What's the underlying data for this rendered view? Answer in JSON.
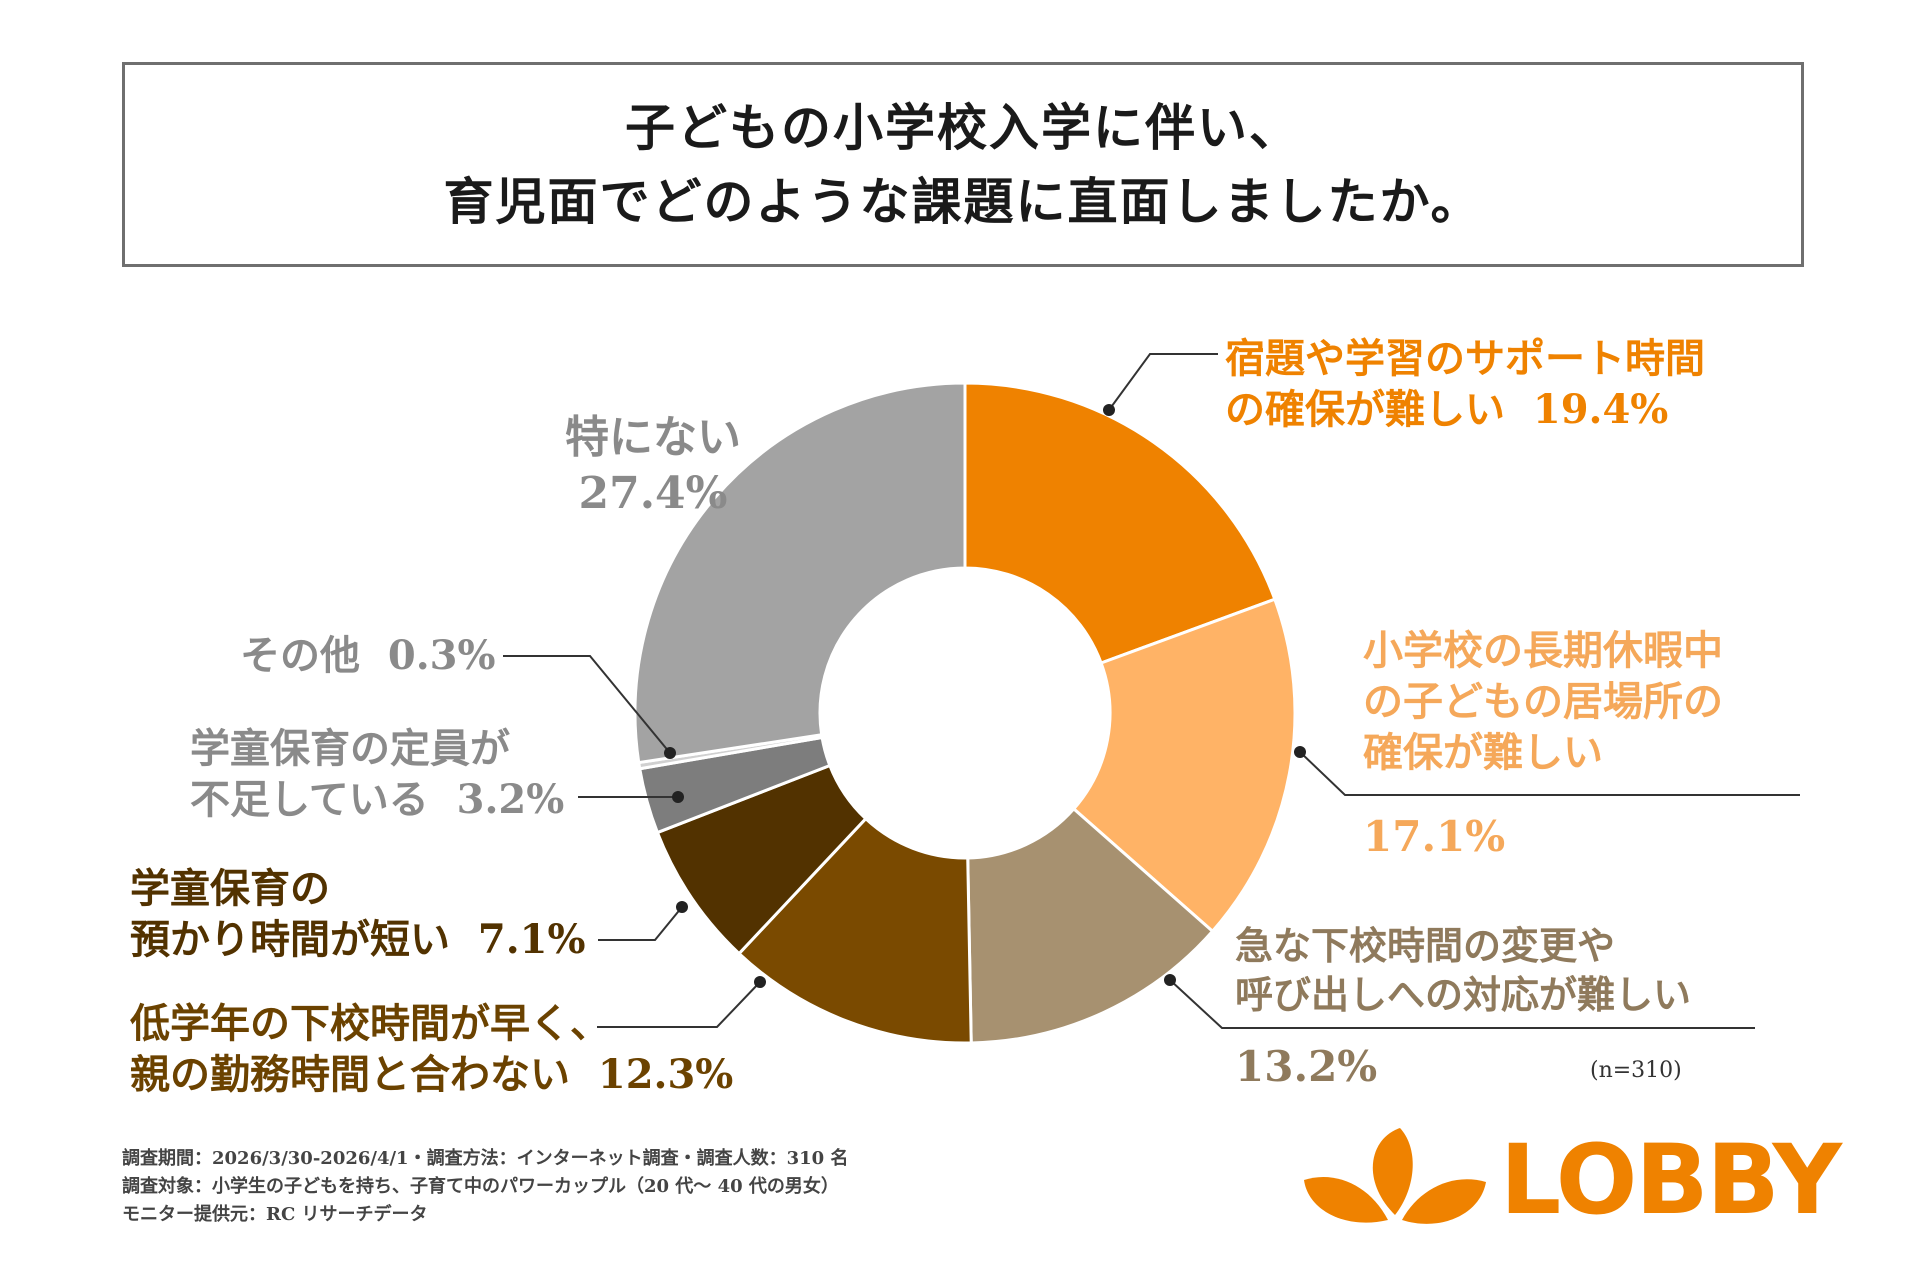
{
  "title": {
    "line1": "子どもの小学校入学に伴い、",
    "line2": "育児面でどのような課題に直面しましたか。"
  },
  "chart_data": {
    "type": "pie",
    "donut": true,
    "sample_note": "(n=310)",
    "slices": [
      {
        "label_lines": [
          "宿題や学習のサポート時間",
          "の確保が難しい"
        ],
        "value": 19.4,
        "value_text": "19.4%",
        "color": "#ef8200",
        "label_color": "#ef8200"
      },
      {
        "label_lines": [
          "小学校の長期休暇中",
          "の子どもの居場所の",
          "確保が難しい"
        ],
        "value": 17.1,
        "value_text": "17.1%",
        "color": "#ffb366",
        "label_color": "#f5a85a"
      },
      {
        "label_lines": [
          "急な下校時間の変更や",
          "呼び出しへの対応が難しい"
        ],
        "value": 13.2,
        "value_text": "13.2%",
        "color": "#a79170",
        "label_color": "#8f7a5c"
      },
      {
        "label_lines": [
          "低学年の下校時間が早く、",
          "親の勤務時間と合わない"
        ],
        "value": 12.3,
        "value_text": "12.3%",
        "color": "#7a4a00",
        "label_color": "#6b4200"
      },
      {
        "label_lines": [
          "学童保育の",
          "預かり時間が短い"
        ],
        "value": 7.1,
        "value_text": "7.1%",
        "color": "#523200",
        "label_color": "#523200"
      },
      {
        "label_lines": [
          "学童保育の定員が",
          "不足している"
        ],
        "value": 3.2,
        "value_text": "3.2%",
        "color": "#7d7d7d",
        "label_color": "#8a8a8a"
      },
      {
        "label_lines": [
          "その他"
        ],
        "value": 0.3,
        "value_text": "0.3%",
        "color": "#d0d0d0",
        "label_color": "#8a8a8a"
      },
      {
        "label_lines": [
          "特にない"
        ],
        "value": 27.4,
        "value_text": "27.4%",
        "color": "#a3a3a3",
        "label_color": "#8a8a8a"
      }
    ]
  },
  "footnotes": {
    "line1": "調査期間：2026/3/30-2026/4/1・調査方法：インターネット調査・調査人数：310 名",
    "line2": "調査対象：小学生の子どもを持ち、子育て中のパワーカップル（20 代〜 40 代の男女）",
    "line3": "モニター提供元：RC リサーチデータ"
  },
  "logo": {
    "text": "LOBBY",
    "color": "#ef8200",
    "icon": "leaf-petals-icon"
  }
}
